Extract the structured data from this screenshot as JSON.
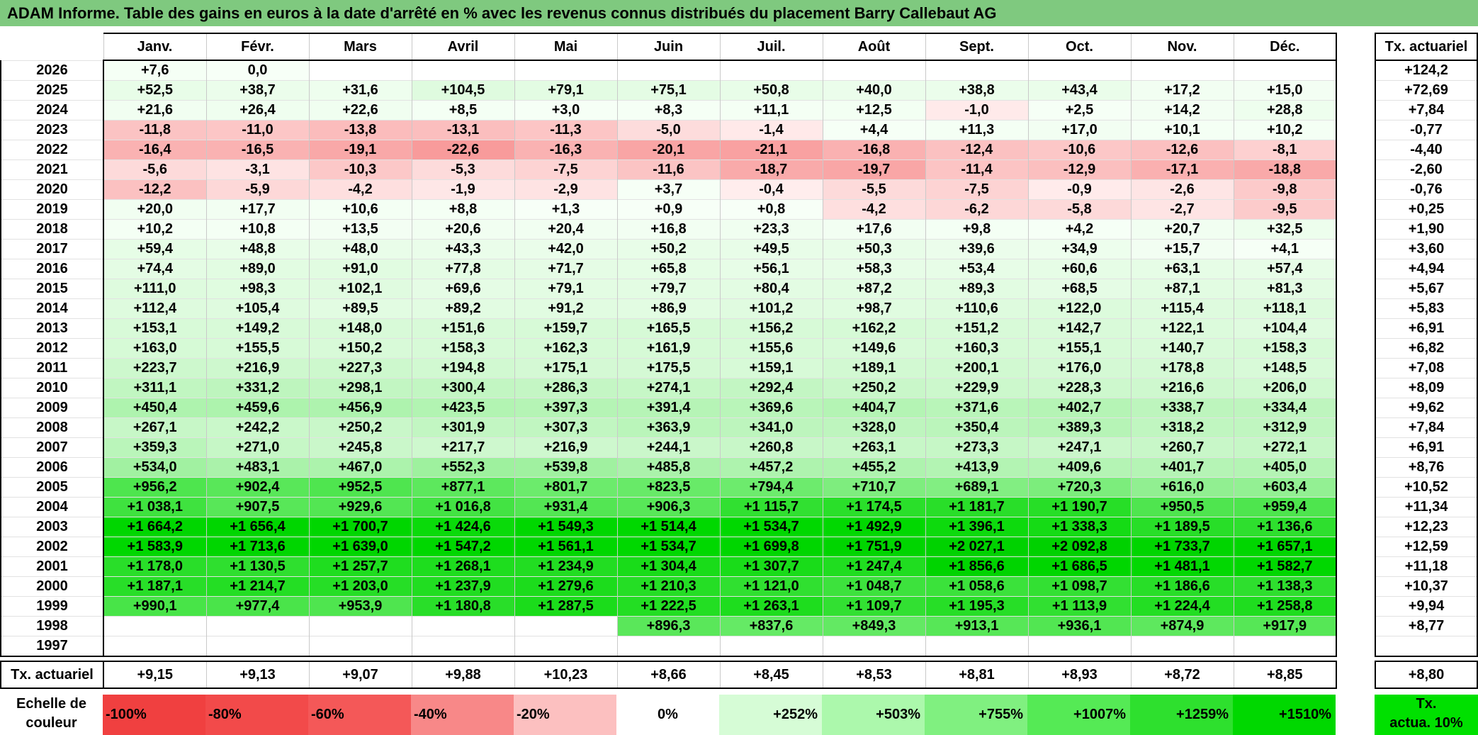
{
  "title": "ADAM Informe. Table des gains en euros à la date d'arrêté en % avec les revenus connus distribués du placement Barry Callebaut AG",
  "months": [
    "Janv.",
    "Févr.",
    "Mars",
    "Avril",
    "Mai",
    "Juin",
    "Juil.",
    "Août",
    "Sept.",
    "Oct.",
    "Nov.",
    "Déc."
  ],
  "side_header": "Tx. actuariel",
  "footer_label": "Tx. actuariel",
  "rows": [
    {
      "year": "2026",
      "vals": [
        "+7,6",
        "0,0",
        "",
        "",
        "",
        "",
        "",
        "",
        "",
        "",
        "",
        ""
      ],
      "tx": "+124,2"
    },
    {
      "year": "2025",
      "vals": [
        "+52,5",
        "+38,7",
        "+31,6",
        "+104,5",
        "+79,1",
        "+75,1",
        "+50,8",
        "+40,0",
        "+38,8",
        "+43,4",
        "+17,2",
        "+15,0"
      ],
      "tx": "+72,69"
    },
    {
      "year": "2024",
      "vals": [
        "+21,6",
        "+26,4",
        "+22,6",
        "+8,5",
        "+3,0",
        "+8,3",
        "+11,1",
        "+12,5",
        "-1,0",
        "+2,5",
        "+14,2",
        "+28,8"
      ],
      "tx": "+7,84"
    },
    {
      "year": "2023",
      "vals": [
        "-11,8",
        "-11,0",
        "-13,8",
        "-13,1",
        "-11,3",
        "-5,0",
        "-1,4",
        "+4,4",
        "+11,3",
        "+17,0",
        "+10,1",
        "+10,2"
      ],
      "tx": "-0,77"
    },
    {
      "year": "2022",
      "vals": [
        "-16,4",
        "-16,5",
        "-19,1",
        "-22,6",
        "-16,3",
        "-20,1",
        "-21,1",
        "-16,8",
        "-12,4",
        "-10,6",
        "-12,6",
        "-8,1"
      ],
      "tx": "-4,40"
    },
    {
      "year": "2021",
      "vals": [
        "-5,6",
        "-3,1",
        "-10,3",
        "-5,3",
        "-7,5",
        "-11,6",
        "-18,7",
        "-19,7",
        "-11,4",
        "-12,9",
        "-17,1",
        "-18,8"
      ],
      "tx": "-2,60"
    },
    {
      "year": "2020",
      "vals": [
        "-12,2",
        "-5,9",
        "-4,2",
        "-1,9",
        "-2,9",
        "+3,7",
        "-0,4",
        "-5,5",
        "-7,5",
        "-0,9",
        "-2,6",
        "-9,8"
      ],
      "tx": "-0,76"
    },
    {
      "year": "2019",
      "vals": [
        "+20,0",
        "+17,7",
        "+10,6",
        "+8,8",
        "+1,3",
        "+0,9",
        "+0,8",
        "-4,2",
        "-6,2",
        "-5,8",
        "-2,7",
        "-9,5"
      ],
      "tx": "+0,25"
    },
    {
      "year": "2018",
      "vals": [
        "+10,2",
        "+10,8",
        "+13,5",
        "+20,6",
        "+20,4",
        "+16,8",
        "+23,3",
        "+17,6",
        "+9,8",
        "+4,2",
        "+20,7",
        "+32,5"
      ],
      "tx": "+1,90"
    },
    {
      "year": "2017",
      "vals": [
        "+59,4",
        "+48,8",
        "+48,0",
        "+43,3",
        "+42,0",
        "+50,2",
        "+49,5",
        "+50,3",
        "+39,6",
        "+34,9",
        "+15,7",
        "+4,1"
      ],
      "tx": "+3,60"
    },
    {
      "year": "2016",
      "vals": [
        "+74,4",
        "+89,0",
        "+91,0",
        "+77,8",
        "+71,7",
        "+65,8",
        "+56,1",
        "+58,3",
        "+53,4",
        "+60,6",
        "+63,1",
        "+57,4"
      ],
      "tx": "+4,94"
    },
    {
      "year": "2015",
      "vals": [
        "+111,0",
        "+98,3",
        "+102,1",
        "+69,6",
        "+79,1",
        "+79,7",
        "+80,4",
        "+87,2",
        "+89,3",
        "+68,5",
        "+87,1",
        "+81,3"
      ],
      "tx": "+5,67"
    },
    {
      "year": "2014",
      "vals": [
        "+112,4",
        "+105,4",
        "+89,5",
        "+89,2",
        "+91,2",
        "+86,9",
        "+101,2",
        "+98,7",
        "+110,6",
        "+122,0",
        "+115,4",
        "+118,1"
      ],
      "tx": "+5,83"
    },
    {
      "year": "2013",
      "vals": [
        "+153,1",
        "+149,2",
        "+148,0",
        "+151,6",
        "+159,7",
        "+165,5",
        "+156,2",
        "+162,2",
        "+151,2",
        "+142,7",
        "+122,1",
        "+104,4"
      ],
      "tx": "+6,91"
    },
    {
      "year": "2012",
      "vals": [
        "+163,0",
        "+155,5",
        "+150,2",
        "+158,3",
        "+162,3",
        "+161,9",
        "+155,6",
        "+149,6",
        "+160,3",
        "+155,1",
        "+140,7",
        "+158,3"
      ],
      "tx": "+6,82"
    },
    {
      "year": "2011",
      "vals": [
        "+223,7",
        "+216,9",
        "+227,3",
        "+194,8",
        "+175,1",
        "+175,5",
        "+159,1",
        "+189,1",
        "+200,1",
        "+176,0",
        "+178,8",
        "+148,5"
      ],
      "tx": "+7,08"
    },
    {
      "year": "2010",
      "vals": [
        "+311,1",
        "+331,2",
        "+298,1",
        "+300,4",
        "+286,3",
        "+274,1",
        "+292,4",
        "+250,2",
        "+229,9",
        "+228,3",
        "+216,6",
        "+206,0"
      ],
      "tx": "+8,09"
    },
    {
      "year": "2009",
      "vals": [
        "+450,4",
        "+459,6",
        "+456,9",
        "+423,5",
        "+397,3",
        "+391,4",
        "+369,6",
        "+404,7",
        "+371,6",
        "+402,7",
        "+338,7",
        "+334,4"
      ],
      "tx": "+9,62"
    },
    {
      "year": "2008",
      "vals": [
        "+267,1",
        "+242,2",
        "+250,2",
        "+301,9",
        "+307,3",
        "+363,9",
        "+341,0",
        "+328,0",
        "+350,4",
        "+389,3",
        "+318,2",
        "+312,9"
      ],
      "tx": "+7,84"
    },
    {
      "year": "2007",
      "vals": [
        "+359,3",
        "+271,0",
        "+245,8",
        "+217,7",
        "+216,9",
        "+244,1",
        "+260,8",
        "+263,1",
        "+273,3",
        "+247,1",
        "+260,7",
        "+272,1"
      ],
      "tx": "+6,91"
    },
    {
      "year": "2006",
      "vals": [
        "+534,0",
        "+483,1",
        "+467,0",
        "+552,3",
        "+539,8",
        "+485,8",
        "+457,2",
        "+455,2",
        "+413,9",
        "+409,6",
        "+401,7",
        "+405,0"
      ],
      "tx": "+8,76"
    },
    {
      "year": "2005",
      "vals": [
        "+956,2",
        "+902,4",
        "+952,5",
        "+877,1",
        "+801,7",
        "+823,5",
        "+794,4",
        "+710,7",
        "+689,1",
        "+720,3",
        "+616,0",
        "+603,4"
      ],
      "tx": "+10,52"
    },
    {
      "year": "2004",
      "vals": [
        "+1 038,1",
        "+907,5",
        "+929,6",
        "+1 016,8",
        "+931,4",
        "+906,3",
        "+1 115,7",
        "+1 174,5",
        "+1 181,7",
        "+1 190,7",
        "+950,5",
        "+959,4"
      ],
      "tx": "+11,34"
    },
    {
      "year": "2003",
      "vals": [
        "+1 664,2",
        "+1 656,4",
        "+1 700,7",
        "+1 424,6",
        "+1 549,3",
        "+1 514,4",
        "+1 534,7",
        "+1 492,9",
        "+1 396,1",
        "+1 338,3",
        "+1 189,5",
        "+1 136,6"
      ],
      "tx": "+12,23"
    },
    {
      "year": "2002",
      "vals": [
        "+1 583,9",
        "+1 713,6",
        "+1 639,0",
        "+1 547,2",
        "+1 561,1",
        "+1 534,7",
        "+1 699,8",
        "+1 751,9",
        "+2 027,1",
        "+2 092,8",
        "+1 733,7",
        "+1 657,1"
      ],
      "tx": "+12,59"
    },
    {
      "year": "2001",
      "vals": [
        "+1 178,0",
        "+1 130,5",
        "+1 257,7",
        "+1 268,1",
        "+1 234,9",
        "+1 304,4",
        "+1 307,7",
        "+1 247,4",
        "+1 856,6",
        "+1 686,5",
        "+1 481,1",
        "+1 582,7"
      ],
      "tx": "+11,18"
    },
    {
      "year": "2000",
      "vals": [
        "+1 187,1",
        "+1 214,7",
        "+1 203,0",
        "+1 237,9",
        "+1 279,6",
        "+1 210,3",
        "+1 121,0",
        "+1 048,7",
        "+1 058,6",
        "+1 098,7",
        "+1 186,6",
        "+1 138,3"
      ],
      "tx": "+10,37"
    },
    {
      "year": "1999",
      "vals": [
        "+990,1",
        "+977,4",
        "+953,9",
        "+1 180,8",
        "+1 287,5",
        "+1 222,5",
        "+1 263,1",
        "+1 109,7",
        "+1 195,3",
        "+1 113,9",
        "+1 224,4",
        "+1 258,8"
      ],
      "tx": "+9,94"
    },
    {
      "year": "1998",
      "vals": [
        "",
        "",
        "",
        "",
        "",
        "+896,3",
        "+837,6",
        "+849,3",
        "+913,1",
        "+936,1",
        "+874,9",
        "+917,9"
      ],
      "tx": "+8,77"
    },
    {
      "year": "1997",
      "vals": [
        "",
        "",
        "",
        "",
        "",
        "",
        "",
        "",
        "",
        "",
        "",
        ""
      ],
      "tx": ""
    }
  ],
  "footer": [
    "+9,15",
    "+9,13",
    "+9,07",
    "+9,88",
    "+10,23",
    "+8,66",
    "+8,45",
    "+8,53",
    "+8,81",
    "+8,93",
    "+8,72",
    "+8,85"
  ],
  "footer_tx": "+8,80",
  "legend": {
    "label_line1": "Echelle de",
    "label_line2": "couleur",
    "swatches": [
      {
        "label": "-100%",
        "color": "#f04040"
      },
      {
        "label": "-80%",
        "color": "#f24a4a"
      },
      {
        "label": "-60%",
        "color": "#f45858"
      },
      {
        "label": "-40%",
        "color": "#f88888"
      },
      {
        "label": "-20%",
        "color": "#fcc0c0"
      },
      {
        "label": "0%",
        "color": "#ffffff"
      },
      {
        "label": "+252%",
        "color": "#d6fcd6"
      },
      {
        "label": "+503%",
        "color": "#acf8ac"
      },
      {
        "label": "+755%",
        "color": "#80f080"
      },
      {
        "label": "+1007%",
        "color": "#55ea55"
      },
      {
        "label": "+1259%",
        "color": "#2ee02e"
      },
      {
        "label": "+1510%",
        "color": "#00d800"
      }
    ],
    "tx_line1": "Tx.",
    "tx_line2": "actua. 10%",
    "tx_color": "#00e000"
  }
}
